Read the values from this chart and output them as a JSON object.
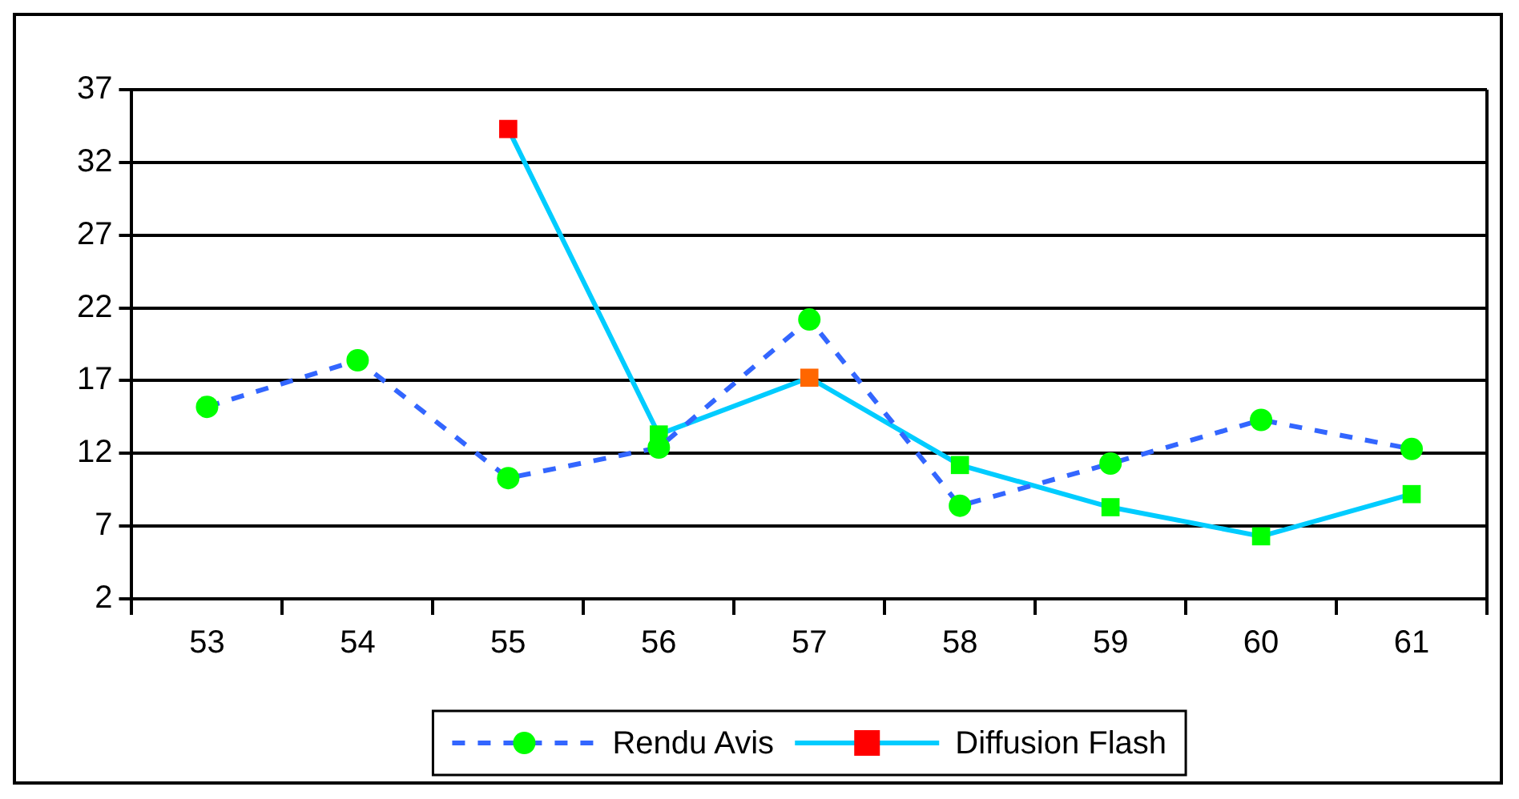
{
  "chart_data": {
    "type": "line",
    "categories": [
      "53",
      "54",
      "55",
      "56",
      "57",
      "58",
      "59",
      "60",
      "61"
    ],
    "series": [
      {
        "name": "Rendu Avis",
        "color": "#3366ff",
        "colors": [
          "#00ff00",
          "#00ff00",
          "#00ff00",
          "#00ff00",
          "#00ff00",
          "#00ff00",
          "#00ff00",
          "#00ff00",
          "#00ff00"
        ],
        "marker": "circle",
        "line_style": "dashed",
        "values": [
          15.2,
          18.4,
          10.3,
          12.4,
          21.2,
          8.4,
          11.3,
          14.3,
          12.3
        ]
      },
      {
        "name": "Diffusion Flash",
        "color": "#00ccff",
        "colors": [
          null,
          null,
          "#ff0000",
          "#00ff00",
          "#ff6600",
          "#00ff00",
          "#00ff00",
          "#00ff00",
          "#00ff00"
        ],
        "marker": "square",
        "line_style": "solid",
        "values": [
          null,
          null,
          34.3,
          13.3,
          17.2,
          11.2,
          8.3,
          6.3,
          9.2
        ]
      }
    ],
    "ylim": [
      2,
      37
    ],
    "yticks": [
      2,
      7,
      12,
      17,
      22,
      27,
      32,
      37
    ],
    "grid": "y",
    "legend": "bottom"
  }
}
